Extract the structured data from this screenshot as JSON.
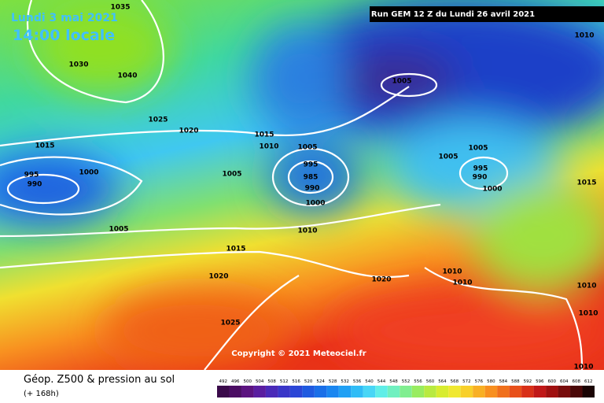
{
  "header": {
    "date": "Lundi 3 mai 2021",
    "time": "14:00 locale",
    "run": "Run GEM 12 Z du Lundi 26 avril 2021"
  },
  "isobar_labels": [
    "1035",
    "1030",
    "1040",
    "1025",
    "1020",
    "1015",
    "995",
    "1000",
    "990",
    "1005",
    "1015",
    "1010",
    "1005",
    "1005",
    "995",
    "985",
    "990",
    "1000",
    "1010",
    "1015",
    "1020",
    "1025",
    "1020",
    "1005",
    "1010",
    "1005",
    "1005",
    "995",
    "990",
    "1000",
    "1015",
    "1010",
    "1010",
    "1010",
    "1010",
    "1010"
  ],
  "copyright": "Copyright © 2021 Meteociel.fr",
  "footer": {
    "title": "Géop. Z500 & pression au sol",
    "lead": "(+ 168h)"
  },
  "colorbar": {
    "labels": [
      492,
      496,
      500,
      504,
      508,
      512,
      516,
      520,
      524,
      528,
      532,
      536,
      540,
      544,
      548,
      552,
      556,
      560,
      564,
      568,
      572,
      576,
      580,
      584,
      588,
      592,
      596,
      600,
      604,
      608,
      612
    ],
    "colors": [
      "#3a0a4a",
      "#4b0d63",
      "#5c1480",
      "#5a1ea0",
      "#4a2ab8",
      "#3a36c8",
      "#2b46d6",
      "#1f5ae0",
      "#1a6fe8",
      "#1a86f0",
      "#20a0f4",
      "#30bcf6",
      "#48d6f6",
      "#60eee8",
      "#70f0c0",
      "#80ee90",
      "#98ec60",
      "#b8ea40",
      "#d8ec30",
      "#f0e830",
      "#f8d02a",
      "#f8b024",
      "#f89020",
      "#f0701c",
      "#e8501a",
      "#d83018",
      "#c01818",
      "#a01010",
      "#780c0c",
      "#4a0808",
      "#1a0404"
    ]
  }
}
